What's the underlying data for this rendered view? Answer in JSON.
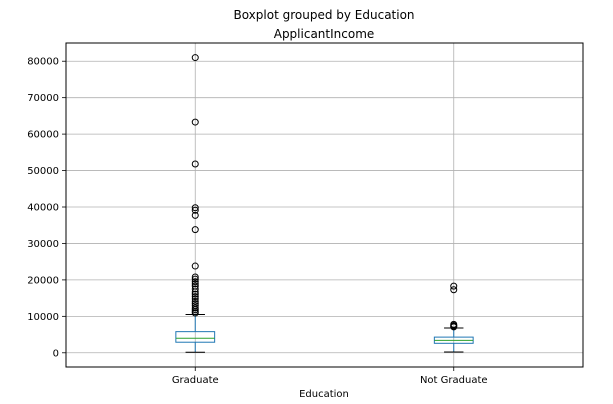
{
  "chart_data": {
    "type": "boxplot",
    "suptitle": "Boxplot grouped by Education",
    "title": "ApplicantIncome",
    "xlabel": "Education",
    "ylabel": "",
    "categories": [
      "Graduate",
      "Not Graduate"
    ],
    "ylim": [
      -3900,
      85000
    ],
    "yticks": [
      0,
      10000,
      20000,
      30000,
      40000,
      50000,
      60000,
      70000,
      80000
    ],
    "grid": true,
    "boxes": [
      {
        "name": "Graduate",
        "whisker_low": 150,
        "q1": 2900,
        "median": 4000,
        "q3": 5800,
        "whisker_high": 10500,
        "outliers": [
          81000,
          63300,
          51800,
          39800,
          39100,
          37700,
          33800,
          23800,
          20800,
          20200,
          19500,
          18900,
          18300,
          17500,
          16700,
          16100,
          15400,
          14800,
          14100,
          13500,
          12900,
          12300,
          11800,
          11300,
          10900
        ]
      },
      {
        "name": "Not Graduate",
        "whisker_low": 200,
        "q1": 2600,
        "median": 3400,
        "q3": 4300,
        "whisker_high": 6800,
        "outliers": [
          18300,
          17300,
          7800,
          7500,
          7300,
          7100
        ]
      }
    ],
    "colors": {
      "box": "#1f77b4",
      "median": "#2ca02c",
      "whisker": "#1f77b4",
      "cap": "#000000",
      "flier": "#000000",
      "grid": "#b0b0b0"
    }
  }
}
